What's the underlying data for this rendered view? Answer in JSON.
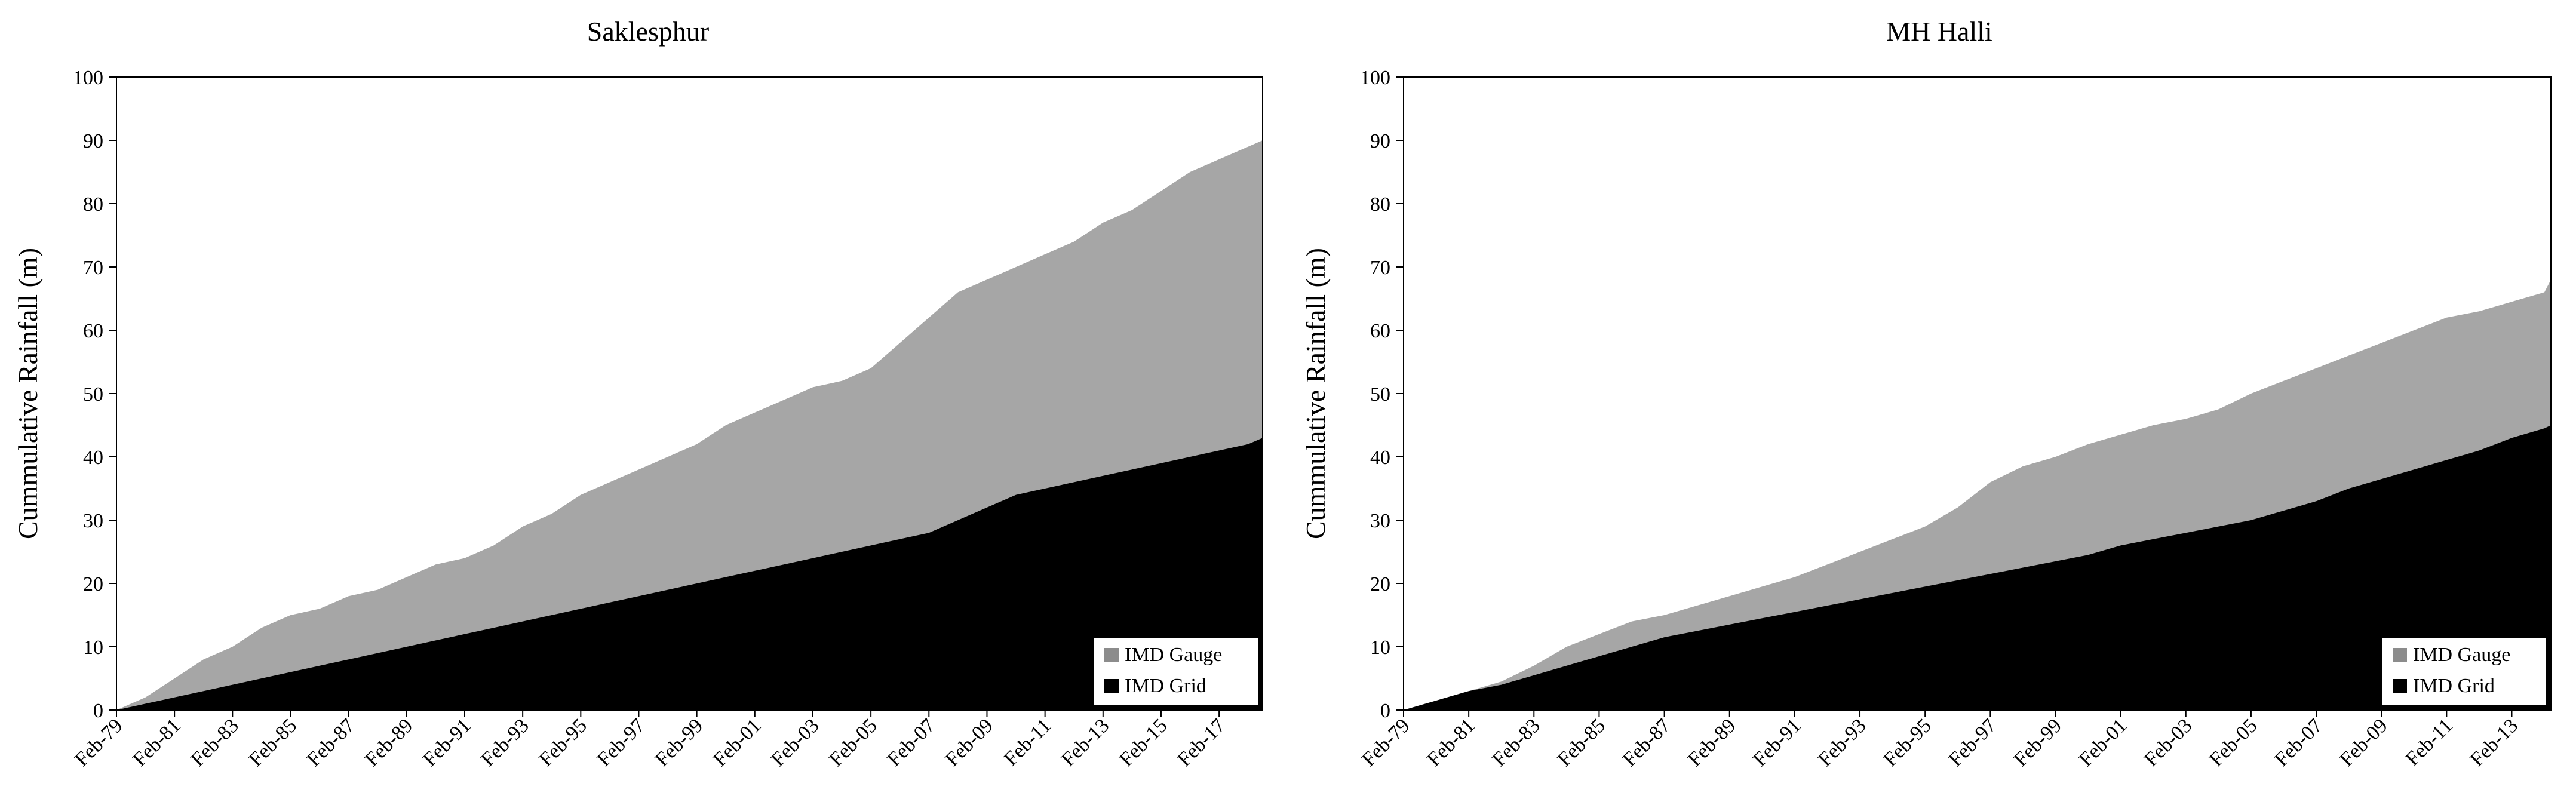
{
  "chart_data": [
    {
      "type": "area",
      "title": "Saklesphur",
      "xlabel": "",
      "ylabel": "Cummulative Rainfall (m)",
      "ylim": [
        0,
        100
      ],
      "yticks": [
        "0",
        "10",
        "20",
        "30",
        "40",
        "50",
        "60",
        "70",
        "80",
        "90",
        "100"
      ],
      "xlim": [
        1979,
        2018.5
      ],
      "xticks": [
        "Feb-79",
        "Feb-81",
        "Feb-83",
        "Feb-85",
        "Feb-87",
        "Feb-89",
        "Feb-91",
        "Feb-93",
        "Feb-95",
        "Feb-97",
        "Feb-99",
        "Feb-01",
        "Feb-03",
        "Feb-05",
        "Feb-07",
        "Feb-09",
        "Feb-11",
        "Feb-13",
        "Feb-15",
        "Feb-17"
      ],
      "legend_position": "bottom-right",
      "series": [
        {
          "name": "IMD Gauge",
          "color": "#a6a6a6",
          "x": [
            1979,
            1980,
            1981,
            1982,
            1983,
            1984,
            1985,
            1986,
            1987,
            1988,
            1989,
            1990,
            1991,
            1992,
            1993,
            1994,
            1995,
            1996,
            1997,
            1998,
            1999,
            2000,
            2001,
            2002,
            2003,
            2004,
            2005,
            2006,
            2007,
            2008,
            2009,
            2010,
            2011,
            2012,
            2013,
            2014,
            2015,
            2016,
            2017,
            2018,
            2018.5
          ],
          "values": [
            0,
            2,
            5,
            8,
            10,
            13,
            15,
            16,
            18,
            19,
            21,
            23,
            24,
            26,
            29,
            31,
            34,
            36,
            38,
            40,
            42,
            45,
            47,
            49,
            51,
            52,
            54,
            58,
            62,
            66,
            68,
            70,
            72,
            74,
            77,
            79,
            82,
            85,
            87,
            89,
            90
          ]
        },
        {
          "name": "IMD Grid",
          "color": "#000000",
          "x": [
            1979,
            1980,
            1981,
            1982,
            1983,
            1984,
            1985,
            1986,
            1987,
            1988,
            1989,
            1990,
            1991,
            1992,
            1993,
            1994,
            1995,
            1996,
            1997,
            1998,
            1999,
            2000,
            2001,
            2002,
            2003,
            2004,
            2005,
            2006,
            2007,
            2008,
            2009,
            2010,
            2011,
            2012,
            2013,
            2014,
            2015,
            2016,
            2017,
            2018,
            2018.5
          ],
          "values": [
            0,
            1,
            2,
            3,
            4,
            5,
            6,
            7,
            8,
            9,
            10,
            11,
            12,
            13,
            14,
            15,
            16,
            17,
            18,
            19,
            20,
            21,
            22,
            23,
            24,
            25,
            26,
            27,
            28,
            30,
            32,
            34,
            35,
            36,
            37,
            38,
            39,
            40,
            41,
            42,
            43
          ]
        }
      ]
    },
    {
      "type": "area",
      "title": "MH Halli",
      "xlabel": "",
      "ylabel": "Cummulative Rainfall (m)",
      "ylim": [
        0,
        100
      ],
      "yticks": [
        "0",
        "10",
        "20",
        "30",
        "40",
        "50",
        "60",
        "70",
        "80",
        "90",
        "100"
      ],
      "xlim": [
        1979,
        2014.2
      ],
      "xticks": [
        "Feb-79",
        "Feb-81",
        "Feb-83",
        "Feb-85",
        "Feb-87",
        "Feb-89",
        "Feb-91",
        "Feb-93",
        "Feb-95",
        "Feb-97",
        "Feb-99",
        "Feb-01",
        "Feb-03",
        "Feb-05",
        "Feb-07",
        "Feb-09",
        "Feb-11",
        "Feb-13"
      ],
      "legend_position": "bottom-right",
      "series": [
        {
          "name": "IMD Gauge",
          "color": "#a6a6a6",
          "x": [
            1979,
            1980,
            1981,
            1982,
            1983,
            1984,
            1985,
            1986,
            1987,
            1988,
            1989,
            1990,
            1991,
            1992,
            1993,
            1994,
            1995,
            1996,
            1997,
            1998,
            1999,
            2000,
            2001,
            2002,
            2003,
            2004,
            2005,
            2006,
            2007,
            2008,
            2009,
            2010,
            2011,
            2012,
            2013,
            2014,
            2014.2
          ],
          "values": [
            0,
            1.5,
            3,
            4.5,
            7,
            10,
            12,
            14,
            15,
            16.5,
            18,
            19.5,
            21,
            23,
            25,
            27,
            29,
            32,
            36,
            38.5,
            40,
            42,
            43.5,
            45,
            46,
            47.5,
            50,
            52,
            54,
            56,
            58,
            60,
            62,
            63,
            64.5,
            66,
            68
          ]
        },
        {
          "name": "IMD Grid",
          "color": "#000000",
          "x": [
            1979,
            1980,
            1981,
            1982,
            1983,
            1984,
            1985,
            1986,
            1987,
            1988,
            1989,
            1990,
            1991,
            1992,
            1993,
            1994,
            1995,
            1996,
            1997,
            1998,
            1999,
            2000,
            2001,
            2002,
            2003,
            2004,
            2005,
            2006,
            2007,
            2008,
            2009,
            2010,
            2011,
            2012,
            2013,
            2014,
            2014.2
          ],
          "values": [
            0,
            1.5,
            3,
            4,
            5.5,
            7,
            8.5,
            10,
            11.5,
            12.5,
            13.5,
            14.5,
            15.5,
            16.5,
            17.5,
            18.5,
            19.5,
            20.5,
            21.5,
            22.5,
            23.5,
            24.5,
            26,
            27,
            28,
            29,
            30,
            31.5,
            33,
            35,
            36.5,
            38,
            39.5,
            41,
            43,
            44.5,
            45
          ]
        }
      ]
    }
  ]
}
